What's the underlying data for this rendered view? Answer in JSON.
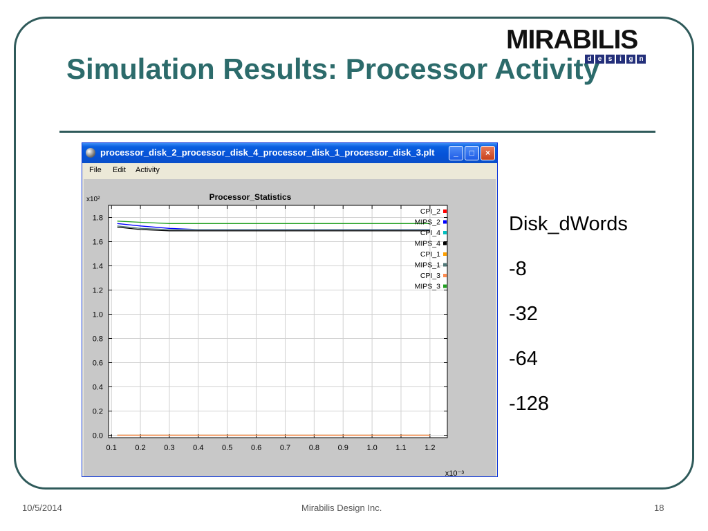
{
  "slide": {
    "title": "Simulation Results: Processor Activity",
    "logo": {
      "name": "MIRABILIS",
      "sub": [
        "d",
        "e",
        "s",
        "i",
        "g",
        "n"
      ]
    },
    "side_list": [
      "Disk_dWords",
      "-8",
      "-32",
      "-64",
      "-128"
    ],
    "footer": {
      "date": "10/5/2014",
      "company": "Mirabilis Design Inc.",
      "page": "18"
    }
  },
  "window": {
    "title": "processor_disk_2_processor_disk_4_processor_disk_1_processor_disk_3.plt",
    "menu": [
      "File",
      "Edit",
      "Activity"
    ],
    "buttons": {
      "minimize": "_",
      "maximize": "□",
      "close": "×"
    }
  },
  "colors": {
    "accent": "#2c6b6b",
    "frame": "#2f5a5a",
    "titlebar": "#0a5fe0"
  },
  "chart_data": {
    "type": "line",
    "title": "Processor_Statistics",
    "y_exponent_label": "x10²",
    "x_exponent_label": "x10⁻³",
    "xlim": [
      0.09,
      1.26
    ],
    "ylim": [
      -0.02,
      1.9
    ],
    "x_ticks": [
      "0.1",
      "0.2",
      "0.3",
      "0.4",
      "0.5",
      "0.6",
      "0.7",
      "0.8",
      "0.9",
      "1.0",
      "1.1",
      "1.2"
    ],
    "y_ticks": [
      "0.0",
      "0.2",
      "0.4",
      "0.6",
      "0.8",
      "1.0",
      "1.2",
      "1.4",
      "1.6",
      "1.8"
    ],
    "grid": true,
    "legend_position": "top-right",
    "series": [
      {
        "name": "CPI_2",
        "color": "#ff0000",
        "x": [
          0.12,
          1.2
        ],
        "y": [
          0.0,
          0.0
        ]
      },
      {
        "name": "MIPS_2",
        "color": "#0000ff",
        "x": [
          0.12,
          0.2,
          0.3,
          0.4,
          0.6,
          0.8,
          1.0,
          1.2
        ],
        "y": [
          1.75,
          1.73,
          1.71,
          1.7,
          1.7,
          1.7,
          1.7,
          1.7
        ]
      },
      {
        "name": "CPI_4",
        "color": "#00c0c0",
        "x": [
          0.12,
          1.2
        ],
        "y": [
          0.0,
          0.0
        ]
      },
      {
        "name": "MIPS_4",
        "color": "#000000",
        "x": [
          0.12,
          0.2,
          0.3,
          0.4,
          0.6,
          0.8,
          1.0,
          1.2
        ],
        "y": [
          1.72,
          1.7,
          1.69,
          1.69,
          1.69,
          1.69,
          1.69,
          1.69
        ]
      },
      {
        "name": "CPI_1",
        "color": "#ffa000",
        "x": [
          0.12,
          1.2
        ],
        "y": [
          0.0,
          0.0
        ]
      },
      {
        "name": "MIPS_1",
        "color": "#507878",
        "x": [
          0.12,
          0.2,
          0.3,
          0.4,
          0.6,
          0.8,
          1.0,
          1.2
        ],
        "y": [
          1.73,
          1.71,
          1.7,
          1.7,
          1.7,
          1.7,
          1.7,
          1.7
        ]
      },
      {
        "name": "CPI_3",
        "color": "#ff8c50",
        "x": [
          0.12,
          1.2
        ],
        "y": [
          0.0,
          0.0
        ]
      },
      {
        "name": "MIPS_3",
        "color": "#20a020",
        "x": [
          0.12,
          0.2,
          0.3,
          0.4,
          0.6,
          0.8,
          1.0,
          1.2
        ],
        "y": [
          1.77,
          1.76,
          1.75,
          1.75,
          1.75,
          1.75,
          1.75,
          1.75
        ]
      }
    ]
  }
}
